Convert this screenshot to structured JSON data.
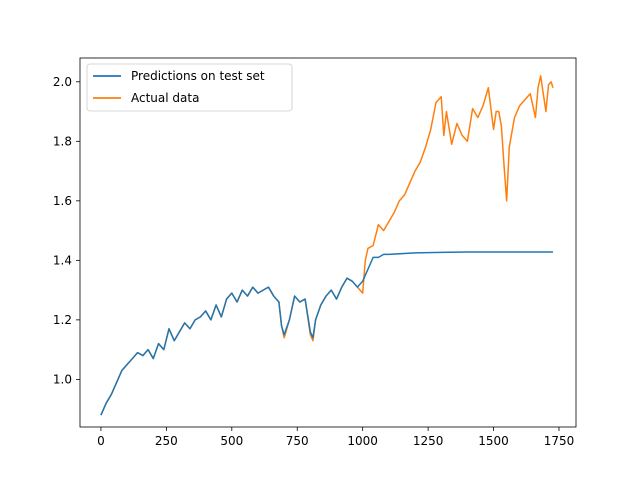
{
  "chart_data": {
    "type": "line",
    "title": "",
    "xlabel": "",
    "ylabel": "",
    "xlim": [
      -80,
      1815
    ],
    "ylim": [
      0.84,
      2.08
    ],
    "xticks": [
      0,
      250,
      500,
      750,
      1000,
      1250,
      1500,
      1750
    ],
    "yticks": [
      1.0,
      1.2,
      1.4,
      1.6,
      1.8,
      2.0
    ],
    "grid": false,
    "legend_position": "top-left",
    "series": [
      {
        "name": "Predictions on test set",
        "color": "#1f77b4",
        "x": [
          0,
          20,
          40,
          60,
          80,
          100,
          120,
          140,
          160,
          180,
          200,
          220,
          240,
          260,
          280,
          300,
          320,
          340,
          360,
          380,
          400,
          420,
          440,
          460,
          480,
          500,
          520,
          540,
          560,
          580,
          600,
          620,
          640,
          660,
          680,
          690,
          700,
          720,
          740,
          760,
          780,
          800,
          810,
          820,
          840,
          860,
          880,
          900,
          920,
          940,
          960,
          980,
          1000,
          1020,
          1040,
          1060,
          1080,
          1100,
          1200,
          1300,
          1400,
          1500,
          1600,
          1727
        ],
        "y": [
          0.88,
          0.92,
          0.95,
          0.99,
          1.03,
          1.05,
          1.07,
          1.09,
          1.08,
          1.1,
          1.07,
          1.12,
          1.1,
          1.17,
          1.13,
          1.16,
          1.19,
          1.17,
          1.2,
          1.21,
          1.23,
          1.2,
          1.25,
          1.21,
          1.27,
          1.29,
          1.26,
          1.3,
          1.28,
          1.31,
          1.29,
          1.3,
          1.31,
          1.28,
          1.26,
          1.18,
          1.15,
          1.2,
          1.28,
          1.26,
          1.27,
          1.16,
          1.14,
          1.2,
          1.25,
          1.28,
          1.3,
          1.27,
          1.31,
          1.34,
          1.33,
          1.31,
          1.33,
          1.37,
          1.41,
          1.41,
          1.42,
          1.42,
          1.425,
          1.427,
          1.428,
          1.428,
          1.428,
          1.428
        ]
      },
      {
        "name": "Actual data",
        "color": "#ff7f0e",
        "x": [
          0,
          20,
          40,
          60,
          80,
          100,
          120,
          140,
          160,
          180,
          200,
          220,
          240,
          260,
          280,
          300,
          320,
          340,
          360,
          380,
          400,
          420,
          440,
          460,
          480,
          500,
          520,
          540,
          560,
          580,
          600,
          620,
          640,
          660,
          680,
          690,
          700,
          720,
          740,
          760,
          780,
          800,
          810,
          820,
          840,
          860,
          880,
          900,
          920,
          940,
          960,
          980,
          1000,
          1010,
          1020,
          1040,
          1060,
          1080,
          1100,
          1120,
          1140,
          1160,
          1180,
          1200,
          1220,
          1240,
          1260,
          1280,
          1300,
          1310,
          1320,
          1340,
          1360,
          1380,
          1400,
          1420,
          1440,
          1460,
          1480,
          1500,
          1510,
          1520,
          1530,
          1540,
          1550,
          1560,
          1580,
          1600,
          1620,
          1640,
          1660,
          1670,
          1680,
          1700,
          1710,
          1720,
          1727
        ],
        "y": [
          0.88,
          0.92,
          0.95,
          0.99,
          1.03,
          1.05,
          1.07,
          1.09,
          1.08,
          1.1,
          1.07,
          1.12,
          1.1,
          1.17,
          1.13,
          1.16,
          1.19,
          1.17,
          1.2,
          1.21,
          1.23,
          1.2,
          1.25,
          1.21,
          1.27,
          1.29,
          1.26,
          1.3,
          1.28,
          1.31,
          1.29,
          1.3,
          1.31,
          1.28,
          1.26,
          1.18,
          1.14,
          1.2,
          1.28,
          1.26,
          1.27,
          1.15,
          1.13,
          1.2,
          1.25,
          1.28,
          1.3,
          1.27,
          1.31,
          1.34,
          1.33,
          1.31,
          1.29,
          1.4,
          1.44,
          1.45,
          1.52,
          1.5,
          1.53,
          1.56,
          1.6,
          1.62,
          1.66,
          1.7,
          1.73,
          1.78,
          1.84,
          1.93,
          1.95,
          1.82,
          1.9,
          1.79,
          1.86,
          1.82,
          1.8,
          1.91,
          1.88,
          1.92,
          1.98,
          1.84,
          1.9,
          1.9,
          1.85,
          1.72,
          1.6,
          1.78,
          1.88,
          1.92,
          1.94,
          1.96,
          1.88,
          1.98,
          2.02,
          1.9,
          1.99,
          2.0,
          1.98
        ]
      }
    ]
  }
}
